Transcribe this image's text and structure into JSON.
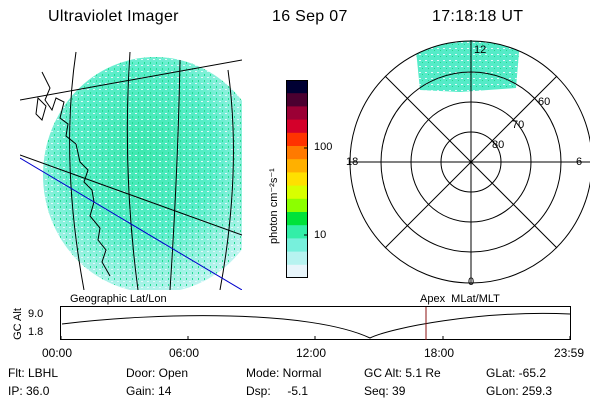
{
  "header": {
    "instrument": "Ultraviolet Imager",
    "date": "16 Sep 07",
    "time": "17:18:18 UT"
  },
  "colorbar": {
    "unit_label": "photon cm⁻²s⁻¹",
    "ticks": [
      "100",
      "10"
    ],
    "colors": [
      "#000033",
      "#4b0030",
      "#9b0035",
      "#d4002a",
      "#ff3300",
      "#ff7a00",
      "#ffb000",
      "#ffe000",
      "#d8ff00",
      "#8cff00",
      "#00e23a",
      "#33eea8",
      "#77f0dc",
      "#b7f3f0",
      "#e8f5fb"
    ]
  },
  "polar_plot": {
    "mlt_labels": [
      "12",
      "18",
      "6",
      "0"
    ],
    "mlat_labels": [
      "60",
      "70",
      "80"
    ]
  },
  "timeline": {
    "left_label": "Geographic Lat/Lon",
    "right_label": "Apex  MLat/MLT",
    "y_axis_label": "GC Alt",
    "y_ticks": [
      "9.0",
      "1.8"
    ],
    "x_ticks": [
      "00:00",
      "06:00",
      "12:00",
      "18:00",
      "23:59"
    ],
    "marker_time": "17:18"
  },
  "status": {
    "row1": [
      {
        "label": "Flt: LBHL"
      },
      {
        "label": "Door: Open"
      },
      {
        "label": "Mode: Normal"
      },
      {
        "label": "GC Alt: 5.1 Re"
      },
      {
        "label": "GLat: -65.2"
      }
    ],
    "row2": [
      {
        "label": "IP: 36.0"
      },
      {
        "label": "Gain: 14"
      },
      {
        "label": "Dsp:     -5.1"
      },
      {
        "label": "Seq: 39"
      },
      {
        "label": "GLon: 259.3"
      }
    ]
  }
}
